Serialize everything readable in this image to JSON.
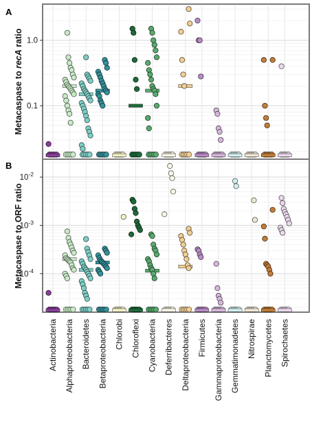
{
  "colors": {
    "Actinobacteria": "#8a3f9a",
    "Alphaproteobacteria": "#c9ebc8",
    "Bacteroidetes": "#7fcfc6",
    "Betaproteobacteria": "#35919b",
    "Chlorobi": "#f2f0c8",
    "Chloroflexi": "#1f6a3a",
    "Cyanobacteria": "#5aaa6e",
    "Deferribacteres": "#fbf7e8",
    "Deltaproteobacteria": "#f0cf96",
    "Firmicutes": "#b98cc6",
    "Gammaproteobacteria": "#d7b8dc",
    "Gemmatimonadetes": "#d3eeee",
    "Nitrospirae": "#efe7d5",
    "Planctomycetes": "#c27e39",
    "Spirochaetes": "#ead9ec"
  },
  "categories": [
    "Actinobacteria",
    "Alphaproteobacteria",
    "Bacteroidetes",
    "Betaproteobacteria",
    "Chlorobi",
    "Chloroflexi",
    "Cyanobacteria",
    "Deferribacteres",
    "Deltaproteobacteria",
    "Firmicutes",
    "Gammaproteobacteria",
    "Gemmatimonadetes",
    "Nitrospirae",
    "Planctomycetes",
    "Spirochaetes"
  ],
  "chart_data": [
    {
      "type": "scatter",
      "panel_label": "A",
      "ylabel": "Metacaspase to recA ratio",
      "ylabel_plain_before": "Metacaspase to ",
      "ylabel_italic": "recA",
      "ylabel_plain_after": " ratio",
      "yscale": "log",
      "ylim": [
        0.016,
        3.4
      ],
      "yticks": [
        0.1,
        1.0
      ],
      "ytick_labels": [
        "0.1",
        "1.0"
      ],
      "grid": true,
      "zero_line_value": 0.0175,
      "points": {
        "Actinobacteria": [
          0.026
        ],
        "Alphaproteobacteria": [
          1.3,
          0.55,
          0.45,
          0.38,
          0.35,
          0.3,
          0.27,
          0.25,
          0.23,
          0.21,
          0.2,
          0.19,
          0.18,
          0.17,
          0.16,
          0.15,
          0.14,
          0.12,
          0.1,
          0.085,
          0.075,
          0.055
        ],
        "Bacteroidetes": [
          0.55,
          0.3,
          0.28,
          0.26,
          0.24,
          0.22,
          0.2,
          0.18,
          0.17,
          0.16,
          0.15,
          0.14,
          0.13,
          0.12,
          0.11,
          0.1,
          0.09,
          0.08,
          0.07,
          0.06,
          0.045,
          0.04,
          0.035,
          0.025,
          0.022
        ],
        "Betaproteobacteria": [
          0.5,
          0.45,
          0.38,
          0.33,
          0.3,
          0.27,
          0.24,
          0.22,
          0.2,
          0.18,
          0.17,
          0.16,
          0.15,
          0.14,
          0.12,
          0.11,
          0.1
        ],
        "Chloroflexi": [
          1.5,
          1.3,
          0.5,
          0.25,
          0.18
        ],
        "Cyanobacteria": [
          1.5,
          1.3,
          1.0,
          0.85,
          0.7,
          0.55,
          0.45,
          0.35,
          0.3,
          0.25,
          0.2,
          0.18,
          0.17,
          0.15,
          0.1,
          0.065,
          0.045
        ],
        "Deltaproteobacteria": [
          3.0,
          1.8,
          1.35,
          0.5,
          0.3,
          0.2
        ],
        "Firmicutes": [
          2.0,
          1.0,
          1.0,
          0.28
        ],
        "Gammaproteobacteria": [
          0.085,
          0.075,
          0.045,
          0.04,
          0.03
        ],
        "Planctomycetes": [
          0.5,
          0.5,
          0.1,
          0.065,
          0.05
        ],
        "Spirochaetes": [
          0.4
        ]
      },
      "medians": {
        "Actinobacteria": 0.0175,
        "Alphaproteobacteria": 0.2,
        "Bacteroidetes": 0.15,
        "Betaproteobacteria": 0.17,
        "Chlorobi": 0.0175,
        "Chloroflexi": 0.1,
        "Cyanobacteria": 0.17,
        "Deferribacteres": 0.0175,
        "Deltaproteobacteria": 0.2,
        "Firmicutes": 0.0175,
        "Gammaproteobacteria": 0.0175,
        "Gemmatimonadetes": 0.0175,
        "Nitrospirae": 0.0175,
        "Planctomycetes": 0.0175,
        "Spirochaetes": 0.0175
      }
    },
    {
      "type": "scatter",
      "panel_label": "B",
      "ylabel": "Metacaspase to ORF ratio",
      "yscale": "log",
      "ylim": [
        1.7e-05,
        0.022
      ],
      "yticks": [
        0.0001,
        0.001,
        0.01
      ],
      "ytick_labels": [
        "10",
        "10",
        "10"
      ],
      "ytick_exponents": [
        "-4",
        "-3",
        "-2"
      ],
      "grid": true,
      "zero_line_value": 1.75e-05,
      "points": {
        "Actinobacteria": [
          4e-05
        ],
        "Alphaproteobacteria": [
          0.00075,
          0.00055,
          0.00045,
          0.0004,
          0.00035,
          0.0003,
          0.00027,
          0.00024,
          0.00021,
          0.0002,
          0.00019,
          0.00018,
          0.00017,
          0.00015,
          0.00013,
          0.00012,
          0.0001,
          9e-05,
          8e-05
        ],
        "Bacteroidetes": [
          0.00052,
          0.00033,
          0.00028,
          0.00024,
          0.0002,
          0.00018,
          0.00016,
          0.00014,
          0.00013,
          0.00012,
          0.00011,
          0.0001,
          9e-05,
          8e-05,
          7e-05,
          6e-05,
          5e-05,
          4e-05,
          3.5e-05,
          3e-05
        ],
        "Betaproteobacteria": [
          0.00033,
          0.0003,
          0.00027,
          0.00024,
          0.00021,
          0.00019,
          0.00018,
          0.00017,
          0.00016,
          0.00015,
          0.00014,
          0.00013,
          0.00012,
          0.00011,
          0.0001
        ],
        "Chlorobi": [
          0.0015
        ],
        "Chloroflexi": [
          0.0034,
          0.0031,
          0.0022,
          0.0018,
          0.0012,
          0.001,
          0.0009,
          0.0008,
          0.00065
        ],
        "Cyanobacteria": [
          0.00065,
          0.0006,
          0.0004,
          0.00033,
          0.0003,
          0.00025,
          0.0002,
          0.00018,
          0.00015,
          0.00013,
          0.00012,
          0.0001,
          8e-05
        ],
        "Deferribacteres": [
          0.017,
          0.012,
          0.0095,
          0.005,
          0.0017
        ],
        "Deltaproteobacteria": [
          0.00085,
          0.0007,
          0.0006,
          0.0005,
          0.0004,
          0.0003,
          0.00025,
          0.0002,
          0.00015,
          0.00013
        ],
        "Firmicutes": [
          0.00032,
          0.0003,
          0.00025,
          0.00022
        ],
        "Gammaproteobacteria": [
          0.00016,
          5e-05,
          3.5e-05,
          3e-05,
          2.5e-05
        ],
        "Gemmatimonadetes": [
          0.0083,
          0.0065
        ],
        "Nitrospirae": [
          0.0033,
          0.0013
        ],
        "Planctomycetes": [
          0.0021,
          0.00095,
          0.00053,
          0.00016,
          0.00015,
          0.00014,
          0.00012,
          0.0001
        ],
        "Spirochaetes": [
          0.0037,
          0.0029,
          0.0022,
          0.0019,
          0.0017,
          0.0015,
          0.0013,
          0.0011,
          0.0009,
          0.0008,
          0.0007
        ]
      },
      "medians": {
        "Actinobacteria": 1.75e-05,
        "Alphaproteobacteria": 0.0002,
        "Bacteroidetes": 0.00012,
        "Betaproteobacteria": 0.00017,
        "Chlorobi": 1.75e-05,
        "Chloroflexi": 1.75e-05,
        "Cyanobacteria": 0.000115,
        "Deferribacteres": 1.75e-05,
        "Deltaproteobacteria": 0.00014,
        "Firmicutes": 1.75e-05,
        "Gammaproteobacteria": 1.75e-05,
        "Gemmatimonadetes": 1.75e-05,
        "Nitrospirae": 1.75e-05,
        "Planctomycetes": 1.75e-05,
        "Spirochaetes": 1.75e-05
      }
    }
  ]
}
